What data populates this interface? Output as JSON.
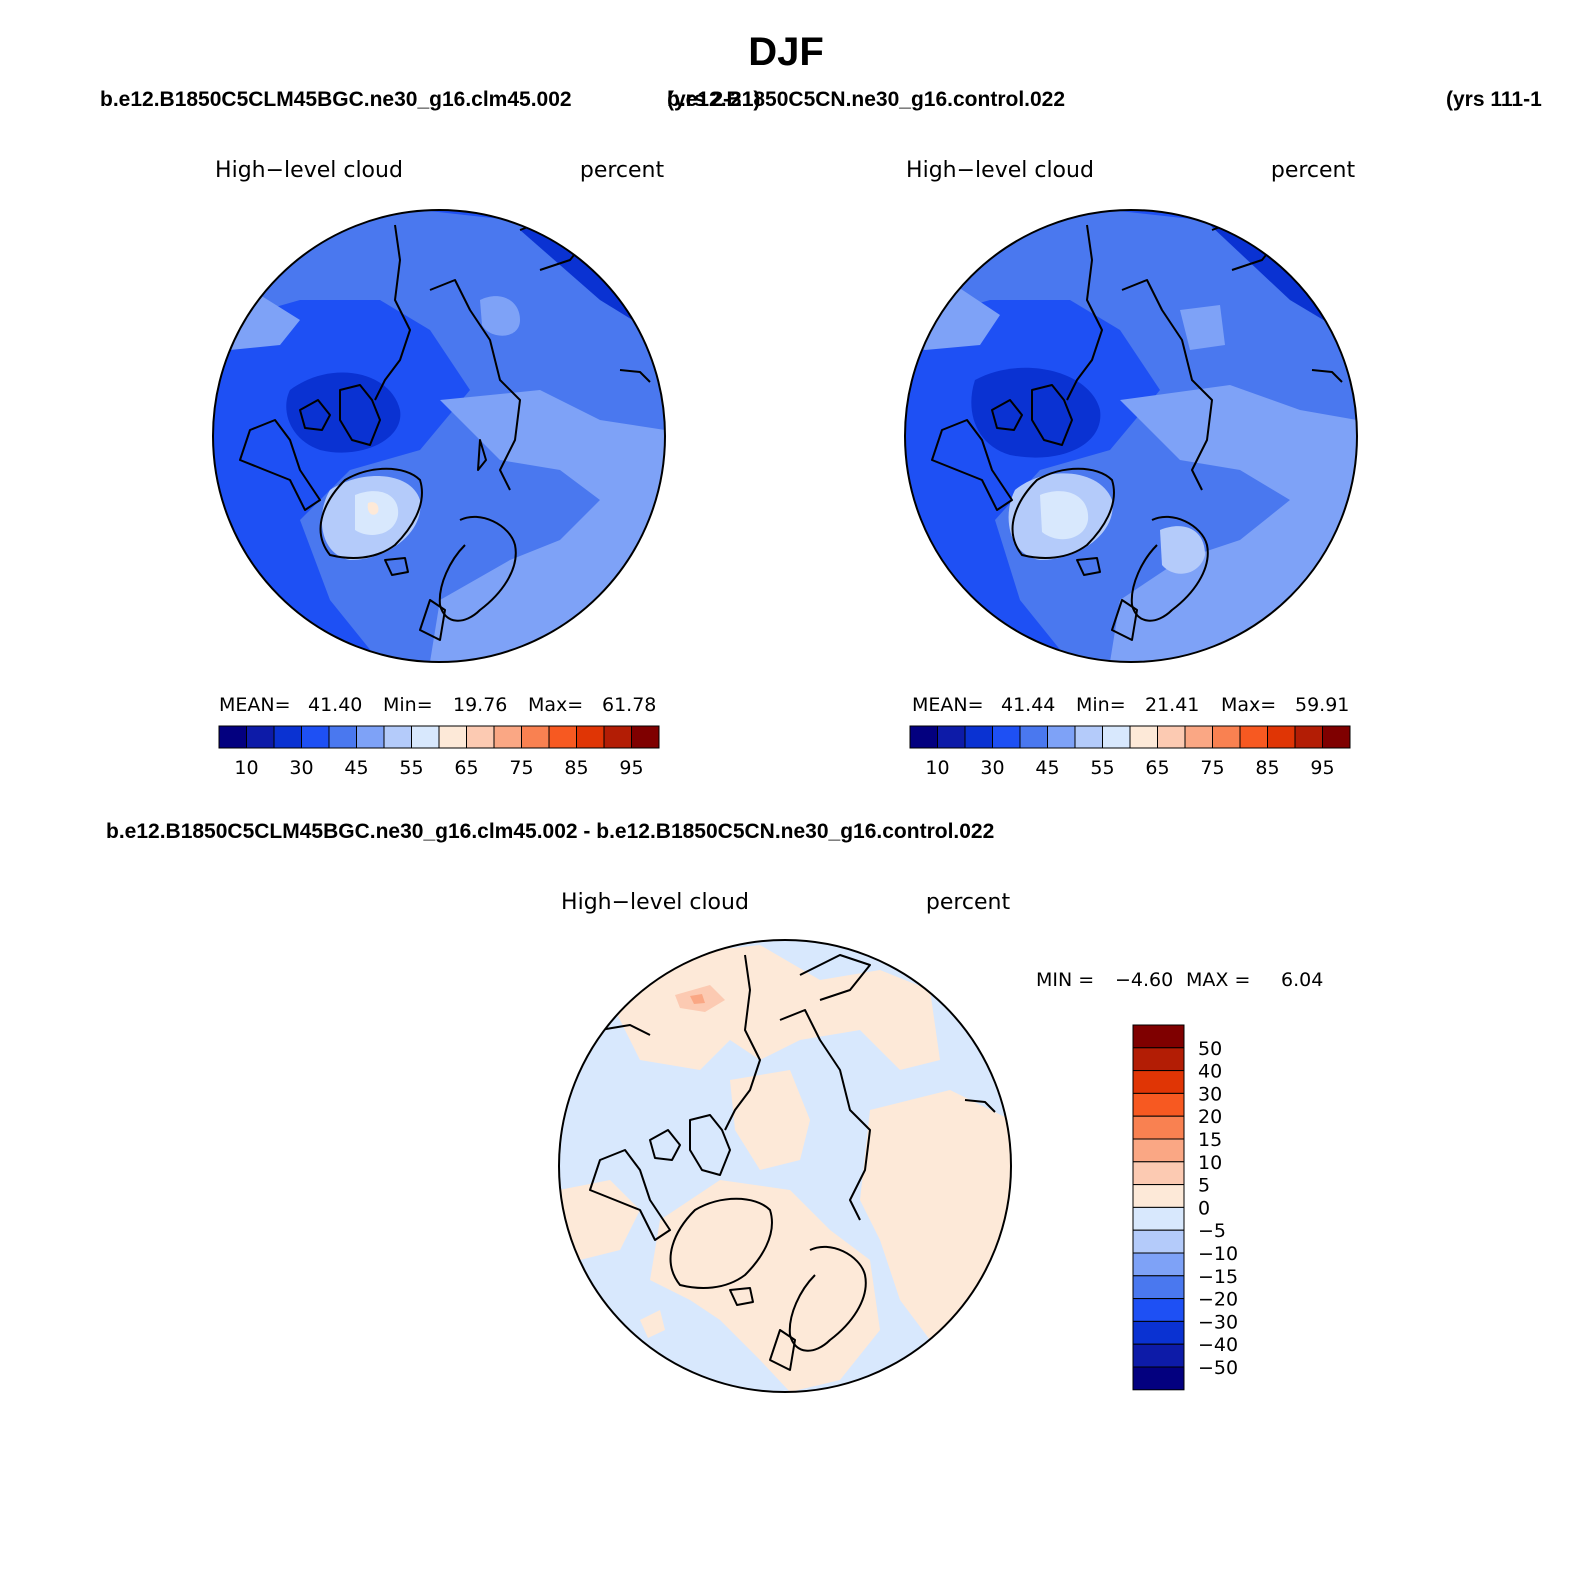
{
  "season": "DJF",
  "cases": {
    "test": "b.e12.B1850C5CLM45BGC.ne30_g16.clm45.002",
    "test_years": "(yrs 2-21)",
    "control": "b.e12.B1850C5CN.ne30_g16.control.022",
    "control_years": "(yrs 111-1"
  },
  "difference_title": "b.e12.B1850C5CLM45BGC.ne30_g16.clm45.002 - b.e12.B1850C5CN.ne30_g16.control.022",
  "panels": [
    {
      "variable": "High−level cloud",
      "units": "percent",
      "stats": {
        "mean_label": "MEAN=",
        "mean": "41.40",
        "min_label": "Min=",
        "min": "19.76",
        "max_label": "Max=",
        "max": "61.78"
      }
    },
    {
      "variable": "High−level cloud",
      "units": "percent",
      "stats": {
        "mean_label": "MEAN=",
        "mean": "41.44",
        "min_label": "Min=",
        "min": "21.41",
        "max_label": "Max=",
        "max": "59.91"
      }
    }
  ],
  "diff_panel": {
    "variable": "High−level cloud",
    "units": "percent",
    "stats": {
      "min_label": "MIN =",
      "min": "−4.60",
      "max_label": "MAX =",
      "max": "6.04"
    }
  },
  "colorbar": {
    "tick_labels": [
      "10",
      "30",
      "45",
      "55",
      "65",
      "75",
      "85",
      "95"
    ],
    "colors": [
      "#03007f",
      "#0d1ba8",
      "#0a32d2",
      "#1e50f4",
      "#4a78ef",
      "#7ea2f7",
      "#b4cbfa",
      "#d8e8fd",
      "#fde9d8",
      "#fccab2",
      "#faa784",
      "#f98151",
      "#f75921",
      "#e03505",
      "#b31d05",
      "#7f0000"
    ]
  },
  "diff_colorbar": {
    "labels_top_to_bottom": [
      "50",
      "40",
      "30",
      "20",
      "15",
      "10",
      "5",
      "0",
      "−5",
      "−10",
      "−15",
      "−20",
      "−30",
      "−40",
      "−50"
    ],
    "colors_top_to_bottom": [
      "#7f0000",
      "#b31d05",
      "#e03505",
      "#f75921",
      "#f98151",
      "#faa784",
      "#fccab2",
      "#fde9d8",
      "#d8e8fd",
      "#b4cbfa",
      "#7ea2f7",
      "#4a78ef",
      "#1e50f4",
      "#0a32d2",
      "#0d1ba8",
      "#03007f"
    ]
  },
  "map_colors": {
    "deep": "#0a32d2",
    "base": "#1e50f4",
    "mid": "#4a78ef",
    "light": "#7ea2f7",
    "pale": "#b4cbfa",
    "palest": "#d8e8fd",
    "warm": "#fde9d8",
    "warm2": "#fccab2",
    "warm3": "#faa784"
  }
}
